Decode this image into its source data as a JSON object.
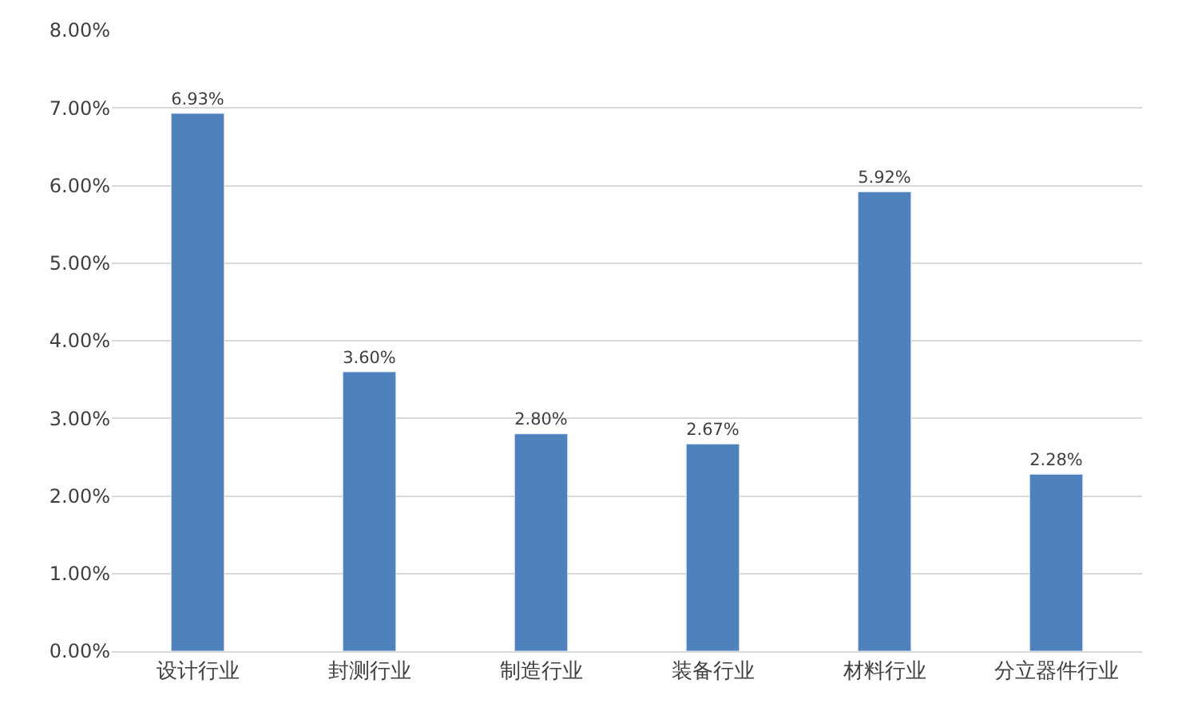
{
  "chart_data": {
    "type": "bar",
    "categories": [
      "设计行业",
      "封测行业",
      "制造行业",
      "装备行业",
      "材料行业",
      "分立器件行业"
    ],
    "values": [
      6.93,
      3.6,
      2.8,
      2.67,
      5.92,
      2.28
    ],
    "value_labels": [
      "6.93%",
      "3.60%",
      "2.80%",
      "2.67%",
      "5.92%",
      "2.28%"
    ],
    "color": "#4f81bd",
    "ylim": [
      0,
      8
    ],
    "yticks": [
      {
        "value": 0,
        "label": "0.00%"
      },
      {
        "value": 1,
        "label": "1.00%"
      },
      {
        "value": 2,
        "label": "2.00%"
      },
      {
        "value": 3,
        "label": "3.00%"
      },
      {
        "value": 4,
        "label": "4.00%"
      },
      {
        "value": 5,
        "label": "5.00%"
      },
      {
        "value": 6,
        "label": "6.00%"
      },
      {
        "value": 7,
        "label": "7.00%"
      },
      {
        "value": 8,
        "label": "8.00%"
      }
    ],
    "grid": "y"
  }
}
